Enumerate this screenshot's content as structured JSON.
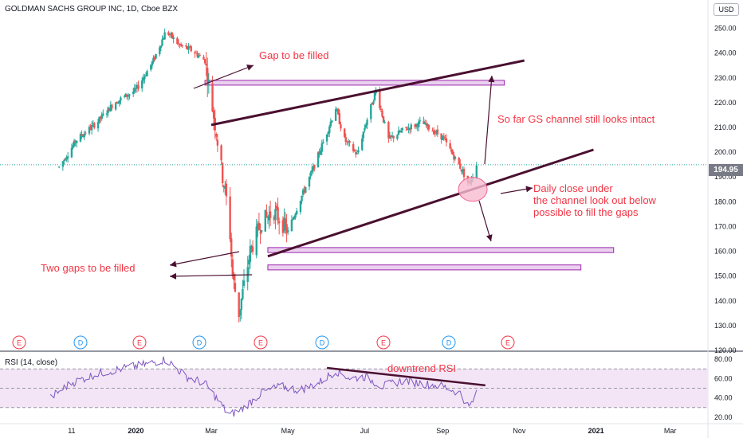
{
  "header": {
    "title": "GOLDMAN SACHS GROUP INC, 1D, Cboe BZX",
    "currency": "USD",
    "last_price": "194.95"
  },
  "rsi_header": {
    "title": "RSI (14, close)"
  },
  "annotations": {
    "gap_top": "Gap to be filled",
    "two_gaps": "Two gaps to be filled",
    "channel": "So far GS channel still looks intact",
    "daily_close": "Daily close under\nthe channel look out below\npossible to fill the gaps",
    "downtrend": "downtrend RSI"
  },
  "colors": {
    "up_candle": "#26a69a",
    "down_candle": "#ef5350",
    "zone_fill": "#e1bee7",
    "zone_border": "#9c27b0",
    "trendline": "#4a1030",
    "annotation_text": "#f23645",
    "rsi_line": "#7e57c2",
    "rsi_band": "#f3e5f5"
  },
  "chart_data": [
    {
      "type": "line",
      "title": "GOLDMAN SACHS GROUP INC, 1D, Cboe BZX",
      "note_type": "candlestick",
      "x_tick_labels": [
        "11",
        "2020",
        "Mar",
        "May",
        "Jul",
        "Sep",
        "Nov",
        "2021",
        "Mar"
      ],
      "y_tick_labels": [
        "250.00",
        "240.00",
        "230.00",
        "220.00",
        "210.00",
        "200.00",
        "190.00",
        "180.00",
        "170.00",
        "160.00",
        "150.00",
        "140.00",
        "130.00",
        "120.00"
      ],
      "ylim": [
        120,
        255
      ],
      "last_price": 194.95,
      "series": [
        {
          "x": [
            "2019-11-01",
            "2019-11-15",
            "2019-12-01",
            "2019-12-15",
            "2020-01-01",
            "2020-01-15",
            "2020-01-25",
            "2020-02-05",
            "2020-02-15",
            "2020-02-25",
            "2020-03-01",
            "2020-03-05",
            "2020-03-10",
            "2020-03-15",
            "2020-03-18",
            "2020-03-23",
            "2020-04-01",
            "2020-04-10",
            "2020-04-20",
            "2020-05-01",
            "2020-05-10",
            "2020-05-20",
            "2020-06-01",
            "2020-06-08",
            "2020-06-15",
            "2020-06-25",
            "2020-07-01",
            "2020-07-10",
            "2020-07-20",
            "2020-08-01",
            "2020-08-15",
            "2020-09-01",
            "2020-09-08",
            "2020-09-15",
            "2020-09-22",
            "2020-09-28"
          ],
          "values": [
            194,
            205,
            212,
            220,
            225,
            237,
            249,
            243,
            241,
            237,
            221,
            208,
            190,
            175,
            150,
            135,
            160,
            172,
            176,
            168,
            180,
            192,
            208,
            218,
            205,
            199,
            210,
            225,
            205,
            209,
            212,
            206,
            200,
            194,
            187,
            195
          ]
        }
      ],
      "horizontal_zones": [
        {
          "from": 227.5,
          "to": 229,
          "x_start": "2020-02-25",
          "x_end": "2020-10-20"
        },
        {
          "from": 159.5,
          "to": 161.5,
          "x_start": "2020-04-15",
          "x_end": "2021-01-15"
        },
        {
          "from": 152.5,
          "to": 154.5,
          "x_start": "2020-04-15",
          "x_end": "2020-12-20"
        }
      ],
      "trend_lines": [
        {
          "from": {
            "x": "2020-03-01",
            "y": 211
          },
          "to": {
            "x": "2020-11-05",
            "y": 237
          }
        },
        {
          "from": {
            "x": "2020-04-15",
            "y": 158
          },
          "to": {
            "x": "2020-12-30",
            "y": 201
          }
        }
      ]
    },
    {
      "type": "line",
      "title": "RSI (14, close)",
      "y_tick_labels": [
        "80.00",
        "60.00",
        "40.00",
        "20.00"
      ],
      "ylim": [
        15,
        85
      ],
      "bands": [
        30,
        70
      ],
      "series": [
        {
          "name": "RSI",
          "x": [
            "2019-10-25",
            "2019-11-10",
            "2019-12-01",
            "2019-12-20",
            "2020-01-10",
            "2020-01-25",
            "2020-02-10",
            "2020-02-25",
            "2020-03-05",
            "2020-03-15",
            "2020-03-25",
            "2020-04-10",
            "2020-04-25",
            "2020-05-10",
            "2020-05-25",
            "2020-06-08",
            "2020-06-20",
            "2020-07-01",
            "2020-07-15",
            "2020-08-01",
            "2020-08-15",
            "2020-09-01",
            "2020-09-15",
            "2020-09-22",
            "2020-09-28"
          ],
          "values": [
            40,
            55,
            65,
            70,
            75,
            80,
            62,
            55,
            40,
            22,
            28,
            45,
            52,
            48,
            55,
            68,
            60,
            62,
            52,
            58,
            55,
            52,
            45,
            30,
            44
          ]
        }
      ],
      "trend_line": {
        "from": {
          "x": "2020-06-01",
          "y": 71
        },
        "to": {
          "x": "2020-10-05",
          "y": 53
        }
      }
    }
  ]
}
